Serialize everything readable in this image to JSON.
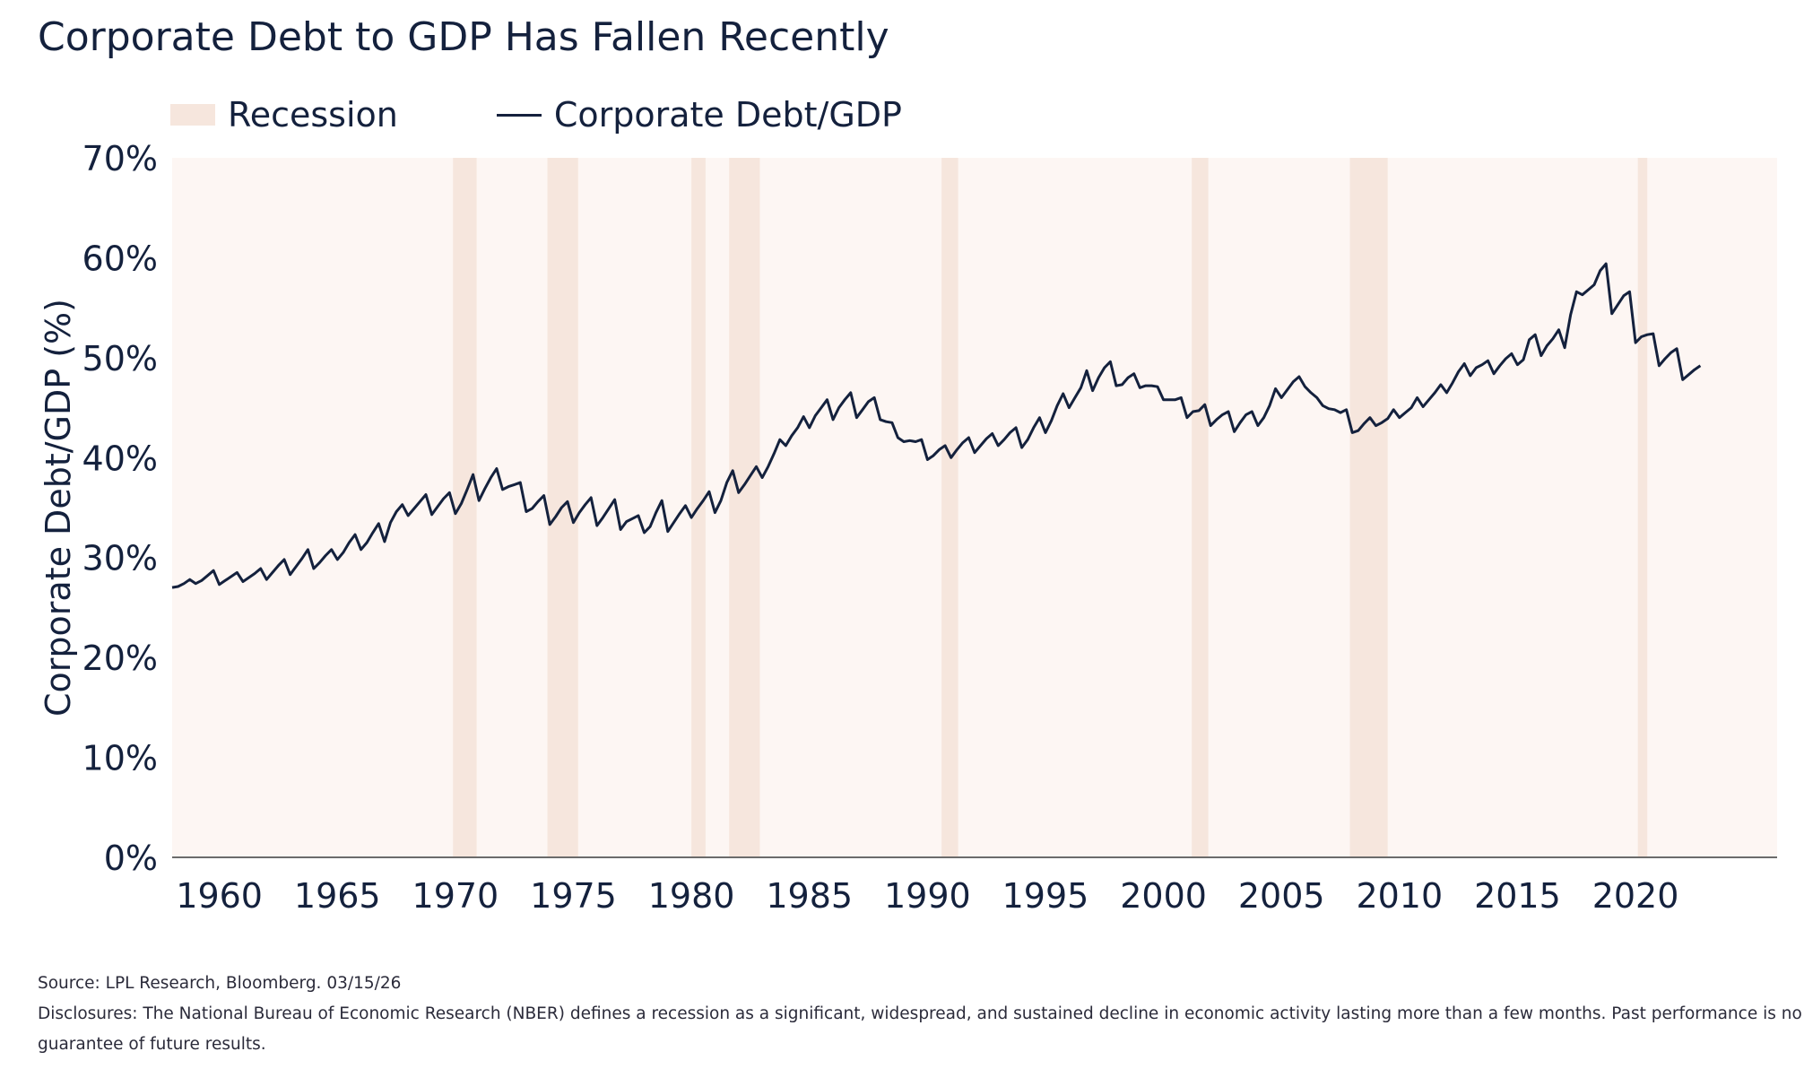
{
  "title": "Corporate Debt to GDP Has Fallen Recently",
  "legend": [
    {
      "label": "Recession",
      "type": "band",
      "color": "#f6e6dd"
    },
    {
      "label": "Corporate Debt/GDP",
      "type": "line",
      "color": "#14213d"
    }
  ],
  "footer": {
    "source": "Source: LPL Research, Bloomberg. 03/15/26",
    "disclosure_line1": "Disclosures: The National Bureau of Economic Research (NBER) defines a recession as a significant, widespread, and sustained decline in economic activity lasting more than a few months. Past performance is no",
    "disclosure_line2": "guarantee of future results."
  },
  "chart_data": {
    "type": "line",
    "ylabel": "Corporate Debt/GDP (%)",
    "xlabel": "",
    "ylim": [
      0,
      70
    ],
    "yticks": [
      0,
      10,
      20,
      30,
      40,
      50,
      60,
      70
    ],
    "ytick_labels": [
      "0%",
      "10%",
      "20%",
      "30%",
      "40%",
      "50%",
      "60%",
      "70%"
    ],
    "xlim": [
      1958.0,
      2026.0
    ],
    "xticks": [
      1960,
      1965,
      1970,
      1975,
      1980,
      1985,
      1990,
      1995,
      2000,
      2005,
      2010,
      2015,
      2020
    ],
    "xtick_labels": [
      "1960",
      "1965",
      "1970",
      "1975",
      "1980",
      "1985",
      "1990",
      "1995",
      "2000",
      "2005",
      "2010",
      "2015",
      "2020"
    ],
    "grid": false,
    "legend_position": "top-left",
    "colors": {
      "line": "#14213d",
      "recession": "#f6e6dd",
      "plot_bg": "#fdf6f3",
      "axis": "#6b6b6b"
    },
    "recessions": [
      [
        1969.9,
        1970.9
      ],
      [
        1973.9,
        1975.2
      ],
      [
        1980.0,
        1980.6
      ],
      [
        1981.6,
        1982.9
      ],
      [
        1990.6,
        1991.3
      ],
      [
        2001.2,
        2001.9
      ],
      [
        2007.9,
        2009.5
      ],
      [
        2020.1,
        2020.5
      ]
    ],
    "series": [
      {
        "name": "Corporate Debt/GDP",
        "color": "#14213d",
        "points": [
          [
            1958.0,
            27.0
          ],
          [
            1958.25,
            27.1
          ],
          [
            1958.5,
            27.4
          ],
          [
            1958.75,
            27.8
          ],
          [
            1959.0,
            27.4
          ],
          [
            1959.25,
            27.7
          ],
          [
            1959.5,
            28.2
          ],
          [
            1959.75,
            28.7
          ],
          [
            1960.0,
            27.3
          ],
          [
            1960.25,
            27.7
          ],
          [
            1960.5,
            28.1
          ],
          [
            1960.75,
            28.5
          ],
          [
            1961.0,
            27.6
          ],
          [
            1961.25,
            28.0
          ],
          [
            1961.5,
            28.4
          ],
          [
            1961.75,
            28.9
          ],
          [
            1962.0,
            27.8
          ],
          [
            1962.25,
            28.5
          ],
          [
            1962.5,
            29.2
          ],
          [
            1962.75,
            29.8
          ],
          [
            1963.0,
            28.3
          ],
          [
            1963.25,
            29.1
          ],
          [
            1963.5,
            29.9
          ],
          [
            1963.75,
            30.8
          ],
          [
            1964.0,
            28.9
          ],
          [
            1964.25,
            29.5
          ],
          [
            1964.5,
            30.2
          ],
          [
            1964.75,
            30.8
          ],
          [
            1965.0,
            29.8
          ],
          [
            1965.25,
            30.5
          ],
          [
            1965.5,
            31.5
          ],
          [
            1965.75,
            32.3
          ],
          [
            1966.0,
            30.8
          ],
          [
            1966.25,
            31.5
          ],
          [
            1966.5,
            32.5
          ],
          [
            1966.75,
            33.4
          ],
          [
            1967.0,
            31.6
          ],
          [
            1967.25,
            33.5
          ],
          [
            1967.5,
            34.6
          ],
          [
            1967.75,
            35.3
          ],
          [
            1968.0,
            34.2
          ],
          [
            1968.25,
            34.9
          ],
          [
            1968.5,
            35.6
          ],
          [
            1968.75,
            36.3
          ],
          [
            1969.0,
            34.3
          ],
          [
            1969.25,
            35.1
          ],
          [
            1969.5,
            35.9
          ],
          [
            1969.75,
            36.5
          ],
          [
            1970.0,
            34.4
          ],
          [
            1970.25,
            35.4
          ],
          [
            1970.5,
            36.8
          ],
          [
            1970.75,
            38.3
          ],
          [
            1971.0,
            35.7
          ],
          [
            1971.25,
            36.9
          ],
          [
            1971.5,
            38.0
          ],
          [
            1971.75,
            38.9
          ],
          [
            1972.0,
            36.8
          ],
          [
            1972.25,
            37.1
          ],
          [
            1972.5,
            37.3
          ],
          [
            1972.75,
            37.5
          ],
          [
            1973.0,
            34.6
          ],
          [
            1973.25,
            34.9
          ],
          [
            1973.5,
            35.6
          ],
          [
            1973.75,
            36.2
          ],
          [
            1974.0,
            33.3
          ],
          [
            1974.25,
            34.1
          ],
          [
            1974.5,
            35.0
          ],
          [
            1974.75,
            35.6
          ],
          [
            1975.0,
            33.5
          ],
          [
            1975.25,
            34.5
          ],
          [
            1975.5,
            35.3
          ],
          [
            1975.75,
            36.0
          ],
          [
            1976.0,
            33.2
          ],
          [
            1976.25,
            34.0
          ],
          [
            1976.5,
            34.9
          ],
          [
            1976.75,
            35.8
          ],
          [
            1977.0,
            32.8
          ],
          [
            1977.25,
            33.6
          ],
          [
            1977.5,
            33.9
          ],
          [
            1977.75,
            34.2
          ],
          [
            1978.0,
            32.5
          ],
          [
            1978.25,
            33.1
          ],
          [
            1978.5,
            34.5
          ],
          [
            1978.75,
            35.7
          ],
          [
            1979.0,
            32.6
          ],
          [
            1979.25,
            33.5
          ],
          [
            1979.5,
            34.4
          ],
          [
            1979.75,
            35.2
          ],
          [
            1980.0,
            34.0
          ],
          [
            1980.25,
            34.9
          ],
          [
            1980.5,
            35.7
          ],
          [
            1980.75,
            36.6
          ],
          [
            1981.0,
            34.5
          ],
          [
            1981.25,
            35.7
          ],
          [
            1981.5,
            37.5
          ],
          [
            1981.75,
            38.7
          ],
          [
            1982.0,
            36.5
          ],
          [
            1982.25,
            37.3
          ],
          [
            1982.5,
            38.2
          ],
          [
            1982.75,
            39.1
          ],
          [
            1983.0,
            38.0
          ],
          [
            1983.25,
            39.1
          ],
          [
            1983.5,
            40.4
          ],
          [
            1983.75,
            41.8
          ],
          [
            1984.0,
            41.2
          ],
          [
            1984.25,
            42.2
          ],
          [
            1984.5,
            43.0
          ],
          [
            1984.75,
            44.1
          ],
          [
            1985.0,
            43.0
          ],
          [
            1985.25,
            44.2
          ],
          [
            1985.5,
            45.0
          ],
          [
            1985.75,
            45.8
          ],
          [
            1986.0,
            43.8
          ],
          [
            1986.25,
            45.0
          ],
          [
            1986.5,
            45.8
          ],
          [
            1986.75,
            46.5
          ],
          [
            1987.0,
            44.0
          ],
          [
            1987.25,
            44.8
          ],
          [
            1987.5,
            45.6
          ],
          [
            1987.75,
            46.0
          ],
          [
            1988.0,
            43.8
          ],
          [
            1988.25,
            43.6
          ],
          [
            1988.5,
            43.5
          ],
          [
            1988.75,
            42.0
          ],
          [
            1989.0,
            41.6
          ],
          [
            1989.25,
            41.7
          ],
          [
            1989.5,
            41.6
          ],
          [
            1989.75,
            41.8
          ],
          [
            1990.0,
            39.8
          ],
          [
            1990.25,
            40.2
          ],
          [
            1990.5,
            40.8
          ],
          [
            1990.75,
            41.2
          ],
          [
            1991.0,
            40.0
          ],
          [
            1991.25,
            40.8
          ],
          [
            1991.5,
            41.5
          ],
          [
            1991.75,
            42.0
          ],
          [
            1992.0,
            40.5
          ],
          [
            1992.25,
            41.2
          ],
          [
            1992.5,
            41.9
          ],
          [
            1992.75,
            42.4
          ],
          [
            1993.0,
            41.2
          ],
          [
            1993.25,
            41.8
          ],
          [
            1993.5,
            42.5
          ],
          [
            1993.75,
            43.0
          ],
          [
            1994.0,
            41.0
          ],
          [
            1994.25,
            41.8
          ],
          [
            1994.5,
            43.0
          ],
          [
            1994.75,
            44.0
          ],
          [
            1995.0,
            42.5
          ],
          [
            1995.25,
            43.7
          ],
          [
            1995.5,
            45.2
          ],
          [
            1995.75,
            46.4
          ],
          [
            1996.0,
            45.0
          ],
          [
            1996.25,
            46.0
          ],
          [
            1996.5,
            47.0
          ],
          [
            1996.75,
            48.7
          ],
          [
            1997.0,
            46.7
          ],
          [
            1997.25,
            48.0
          ],
          [
            1997.5,
            49.0
          ],
          [
            1997.75,
            49.6
          ],
          [
            1998.0,
            47.2
          ],
          [
            1998.25,
            47.3
          ],
          [
            1998.5,
            48.0
          ],
          [
            1998.75,
            48.4
          ],
          [
            1999.0,
            47.0
          ],
          [
            1999.25,
            47.2
          ],
          [
            1999.5,
            47.2
          ],
          [
            1999.75,
            47.1
          ],
          [
            2000.0,
            45.8
          ],
          [
            2000.25,
            45.8
          ],
          [
            2000.5,
            45.8
          ],
          [
            2000.75,
            46.0
          ],
          [
            2001.0,
            44.0
          ],
          [
            2001.25,
            44.6
          ],
          [
            2001.5,
            44.7
          ],
          [
            2001.75,
            45.3
          ],
          [
            2002.0,
            43.2
          ],
          [
            2002.25,
            43.8
          ],
          [
            2002.5,
            44.3
          ],
          [
            2002.75,
            44.6
          ],
          [
            2003.0,
            42.6
          ],
          [
            2003.25,
            43.5
          ],
          [
            2003.5,
            44.3
          ],
          [
            2003.75,
            44.6
          ],
          [
            2004.0,
            43.2
          ],
          [
            2004.25,
            44.0
          ],
          [
            2004.5,
            45.2
          ],
          [
            2004.75,
            46.9
          ],
          [
            2005.0,
            46.0
          ],
          [
            2005.25,
            46.8
          ],
          [
            2005.5,
            47.6
          ],
          [
            2005.75,
            48.1
          ],
          [
            2006.0,
            47.1
          ],
          [
            2006.25,
            46.5
          ],
          [
            2006.5,
            46.0
          ],
          [
            2006.75,
            45.2
          ],
          [
            2007.0,
            44.9
          ],
          [
            2007.25,
            44.8
          ],
          [
            2007.5,
            44.5
          ],
          [
            2007.75,
            44.8
          ],
          [
            2008.0,
            42.5
          ],
          [
            2008.25,
            42.7
          ],
          [
            2008.5,
            43.4
          ],
          [
            2008.75,
            44.0
          ],
          [
            2009.0,
            43.2
          ],
          [
            2009.25,
            43.5
          ],
          [
            2009.5,
            43.9
          ],
          [
            2009.75,
            44.8
          ],
          [
            2010.0,
            44.0
          ],
          [
            2010.25,
            44.5
          ],
          [
            2010.5,
            45.0
          ],
          [
            2010.75,
            46.0
          ],
          [
            2011.0,
            45.1
          ],
          [
            2011.25,
            45.8
          ],
          [
            2011.5,
            46.5
          ],
          [
            2011.75,
            47.3
          ],
          [
            2012.0,
            46.5
          ],
          [
            2012.25,
            47.5
          ],
          [
            2012.5,
            48.6
          ],
          [
            2012.75,
            49.4
          ],
          [
            2013.0,
            48.2
          ],
          [
            2013.25,
            49.0
          ],
          [
            2013.5,
            49.3
          ],
          [
            2013.75,
            49.7
          ],
          [
            2014.0,
            48.4
          ],
          [
            2014.25,
            49.2
          ],
          [
            2014.5,
            49.9
          ],
          [
            2014.75,
            50.4
          ],
          [
            2015.0,
            49.3
          ],
          [
            2015.25,
            49.8
          ],
          [
            2015.5,
            51.8
          ],
          [
            2015.75,
            52.3
          ],
          [
            2016.0,
            50.2
          ],
          [
            2016.25,
            51.2
          ],
          [
            2016.5,
            51.9
          ],
          [
            2016.75,
            52.8
          ],
          [
            2017.0,
            51.0
          ],
          [
            2017.25,
            54.3
          ],
          [
            2017.5,
            56.6
          ],
          [
            2017.75,
            56.3
          ],
          [
            2018.0,
            56.8
          ],
          [
            2018.25,
            57.3
          ],
          [
            2018.5,
            58.7
          ],
          [
            2018.75,
            59.4
          ],
          [
            2019.0,
            54.4
          ],
          [
            2019.25,
            55.3
          ],
          [
            2019.5,
            56.2
          ],
          [
            2019.75,
            56.6
          ],
          [
            2020.0,
            51.5
          ],
          [
            2020.25,
            52.1
          ],
          [
            2020.5,
            52.3
          ],
          [
            2020.75,
            52.4
          ],
          [
            2021.0,
            49.2
          ],
          [
            2021.25,
            49.9
          ],
          [
            2021.5,
            50.5
          ],
          [
            2021.75,
            50.9
          ],
          [
            2022.0,
            47.8
          ],
          [
            2022.25,
            48.3
          ],
          [
            2022.5,
            48.8
          ],
          [
            2022.75,
            49.2
          ]
        ]
      }
    ]
  }
}
